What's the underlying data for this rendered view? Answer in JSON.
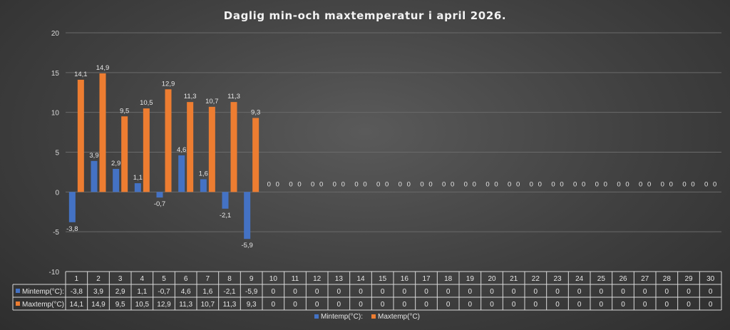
{
  "chart_data": {
    "type": "bar",
    "title": "Daglig min-och maxtemperatur i april 2026.",
    "categories": [
      "1",
      "2",
      "3",
      "4",
      "5",
      "6",
      "7",
      "8",
      "9",
      "10",
      "11",
      "12",
      "13",
      "14",
      "15",
      "16",
      "17",
      "18",
      "19",
      "20",
      "21",
      "22",
      "23",
      "24",
      "25",
      "26",
      "27",
      "28",
      "29",
      "30"
    ],
    "series": [
      {
        "name": "Mintemp(°C):",
        "color": "#4472c4",
        "values": [
          -3.8,
          3.9,
          2.9,
          1.1,
          -0.7,
          4.6,
          1.6,
          -2.1,
          -5.9,
          0,
          0,
          0,
          0,
          0,
          0,
          0,
          0,
          0,
          0,
          0,
          0,
          0,
          0,
          0,
          0,
          0,
          0,
          0,
          0,
          0
        ],
        "labels": [
          "-3,8",
          "3,9",
          "2,9",
          "1,1",
          "-0,7",
          "4,6",
          "1,6",
          "-2,1",
          "-5,9",
          "0",
          "0",
          "0",
          "0",
          "0",
          "0",
          "0",
          "0",
          "0",
          "0",
          "0",
          "0",
          "0",
          "0",
          "0",
          "0",
          "0",
          "0",
          "0",
          "0",
          "0"
        ]
      },
      {
        "name": "Maxtemp(°C)",
        "color": "#ed7d31",
        "values": [
          14.1,
          14.9,
          9.5,
          10.5,
          12.9,
          11.3,
          10.7,
          11.3,
          9.3,
          0,
          0,
          0,
          0,
          0,
          0,
          0,
          0,
          0,
          0,
          0,
          0,
          0,
          0,
          0,
          0,
          0,
          0,
          0,
          0,
          0
        ],
        "labels": [
          "14,1",
          "14,9",
          "9,5",
          "10,5",
          "12,9",
          "11,3",
          "10,7",
          "11,3",
          "9,3",
          "0",
          "0",
          "0",
          "0",
          "0",
          "0",
          "0",
          "0",
          "0",
          "0",
          "0",
          "0",
          "0",
          "0",
          "0",
          "0",
          "0",
          "0",
          "0",
          "0",
          "0"
        ]
      }
    ],
    "ylim": [
      -10,
      20
    ],
    "yticks": [
      "-10",
      "-5",
      "0",
      "5",
      "10",
      "15",
      "20"
    ],
    "grid": true,
    "legend": "bottom",
    "data_table": true
  }
}
